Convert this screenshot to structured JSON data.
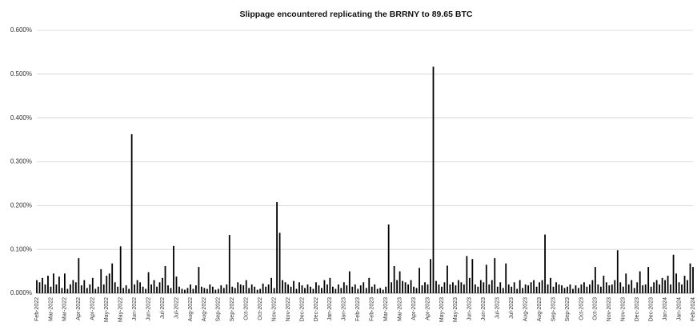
{
  "chart_data": {
    "type": "bar",
    "title": "Slippage encountered replicating the BRRNY to 89.65 BTC",
    "color": "#000000",
    "grid": true,
    "ylim": [
      0,
      0.6
    ],
    "yticks": [
      {
        "value": 0,
        "label": "0.000%"
      },
      {
        "value": 0.1,
        "label": "0.100%"
      },
      {
        "value": 0.2,
        "label": "0.200%"
      },
      {
        "value": 0.3,
        "label": "0.300%"
      },
      {
        "value": 0.4,
        "label": "0.400%"
      },
      {
        "value": 0.5,
        "label": "0.500%"
      },
      {
        "value": 0.6,
        "label": "0.600%"
      }
    ],
    "categories": [
      "Feb-2022",
      null,
      null,
      null,
      null,
      "Mar-2022",
      null,
      null,
      null,
      null,
      "Mar-2022",
      null,
      null,
      null,
      null,
      "Apr-2022",
      null,
      null,
      null,
      null,
      "Apr-2022",
      null,
      null,
      null,
      null,
      "May-2022",
      null,
      null,
      null,
      null,
      "May-2022",
      null,
      null,
      null,
      null,
      "Jun-2022",
      null,
      null,
      null,
      null,
      "Jun-2022",
      null,
      null,
      null,
      null,
      "Jul-2022",
      null,
      null,
      null,
      null,
      "Jul-2022",
      null,
      null,
      null,
      null,
      "Aug-2022",
      null,
      null,
      null,
      null,
      "Aug-2022",
      null,
      null,
      null,
      null,
      "Sep-2022",
      null,
      null,
      null,
      null,
      "Sep-2022",
      null,
      null,
      null,
      null,
      "Oct-2022",
      null,
      null,
      null,
      null,
      "Oct-2022",
      null,
      null,
      null,
      null,
      "Nov-2022",
      null,
      null,
      null,
      null,
      "Nov-2022",
      null,
      null,
      null,
      null,
      "Dec-2022",
      null,
      null,
      null,
      null,
      "Dec-2022",
      null,
      null,
      null,
      null,
      "Jan-2023",
      null,
      null,
      null,
      null,
      "Jan-2023",
      null,
      null,
      null,
      null,
      "Feb-2023",
      null,
      null,
      null,
      null,
      "Feb-2023",
      null,
      null,
      null,
      null,
      "Mar-2023",
      null,
      null,
      null,
      null,
      "Mar-2023",
      null,
      null,
      null,
      null,
      "Apr-2023",
      null,
      null,
      null,
      null,
      "Apr-2023",
      null,
      null,
      null,
      null,
      "May-2023",
      null,
      null,
      null,
      null,
      "May-2023",
      null,
      null,
      null,
      null,
      "Jun-2023",
      null,
      null,
      null,
      null,
      "Jun-2023",
      null,
      null,
      null,
      null,
      "Jul-2023",
      null,
      null,
      null,
      null,
      "Jul-2023",
      null,
      null,
      null,
      null,
      "Aug-2023",
      null,
      null,
      null,
      null,
      "Aug-2023",
      null,
      null,
      null,
      null,
      "Sep-2023",
      null,
      null,
      null,
      null,
      "Sep-2023",
      null,
      null,
      null,
      null,
      "Oct-2023",
      null,
      null,
      null,
      null,
      "Oct-2023",
      null,
      null,
      null,
      null,
      "Nov-2023",
      null,
      null,
      null,
      null,
      "Nov-2023",
      null,
      null,
      null,
      null,
      "Dec-2023",
      null,
      null,
      null,
      null,
      "Dec-2023",
      null,
      null,
      null,
      null,
      "Jan-2024",
      null,
      null,
      null,
      null,
      "Jan-2024",
      null,
      null,
      null,
      null,
      "Feb-2024"
    ],
    "values": [
      0.03,
      0.025,
      0.035,
      0.02,
      0.04,
      0.015,
      0.045,
      0.02,
      0.038,
      0.012,
      0.045,
      0.01,
      0.02,
      0.03,
      0.025,
      0.08,
      0.018,
      0.03,
      0.012,
      0.02,
      0.035,
      0.01,
      0.015,
      0.055,
      0.02,
      0.04,
      0.045,
      0.068,
      0.025,
      0.015,
      0.107,
      0.012,
      0.018,
      0.01,
      0.363,
      0.02,
      0.03,
      0.025,
      0.015,
      0.01,
      0.048,
      0.02,
      0.03,
      0.015,
      0.025,
      0.035,
      0.062,
      0.018,
      0.012,
      0.108,
      0.038,
      0.015,
      0.01,
      0.008,
      0.012,
      0.02,
      0.01,
      0.018,
      0.06,
      0.015,
      0.012,
      0.01,
      0.02,
      0.015,
      0.008,
      0.01,
      0.018,
      0.012,
      0.02,
      0.133,
      0.015,
      0.012,
      0.025,
      0.02,
      0.018,
      0.03,
      0.012,
      0.02,
      0.015,
      0.008,
      0.01,
      0.022,
      0.015,
      0.02,
      0.035,
      0.012,
      0.208,
      0.138,
      0.03,
      0.025,
      0.02,
      0.015,
      0.028,
      0.01,
      0.025,
      0.018,
      0.012,
      0.02,
      0.015,
      0.01,
      0.025,
      0.018,
      0.012,
      0.03,
      0.02,
      0.035,
      0.015,
      0.01,
      0.02,
      0.012,
      0.025,
      0.018,
      0.05,
      0.015,
      0.02,
      0.01,
      0.018,
      0.025,
      0.012,
      0.035,
      0.015,
      0.02,
      0.01,
      0.012,
      0.008,
      0.015,
      0.157,
      0.025,
      0.062,
      0.03,
      0.05,
      0.028,
      0.025,
      0.02,
      0.03,
      0.015,
      0.012,
      0.058,
      0.018,
      0.025,
      0.02,
      0.078,
      0.517,
      0.028,
      0.02,
      0.015,
      0.025,
      0.063,
      0.02,
      0.025,
      0.018,
      0.03,
      0.025,
      0.02,
      0.085,
      0.035,
      0.078,
      0.02,
      0.015,
      0.03,
      0.025,
      0.065,
      0.02,
      0.03,
      0.08,
      0.015,
      0.025,
      0.012,
      0.068,
      0.02,
      0.015,
      0.025,
      0.01,
      0.03,
      0.012,
      0.02,
      0.018,
      0.025,
      0.03,
      0.015,
      0.025,
      0.03,
      0.134,
      0.02,
      0.035,
      0.015,
      0.025,
      0.02,
      0.018,
      0.012,
      0.015,
      0.02,
      0.01,
      0.018,
      0.012,
      0.02,
      0.025,
      0.015,
      0.02,
      0.03,
      0.06,
      0.02,
      0.015,
      0.04,
      0.025,
      0.018,
      0.02,
      0.03,
      0.098,
      0.025,
      0.015,
      0.045,
      0.02,
      0.03,
      0.012,
      0.025,
      0.05,
      0.018,
      0.02,
      0.06,
      0.015,
      0.025,
      0.03,
      0.02,
      0.035,
      0.03,
      0.04,
      0.02,
      0.088,
      0.045,
      0.025,
      0.02,
      0.04,
      0.03,
      0.068,
      0.06
    ]
  }
}
